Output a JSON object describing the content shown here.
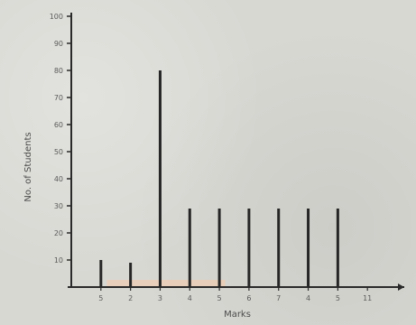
{
  "chart_data": {
    "type": "bar",
    "xlabel": "Marks",
    "ylabel": "No. of Students",
    "ylim": [
      0,
      100
    ],
    "xlim": [
      0,
      11
    ],
    "y_ticks": [
      "10",
      "20",
      "30",
      "40",
      "50",
      "60",
      "70",
      "80",
      "90",
      "100"
    ],
    "x_tick_labels": [
      "5",
      "2",
      "3",
      "4",
      "5",
      "6",
      "7",
      "4",
      "5",
      "11"
    ],
    "x_tick_positions": [
      1,
      2,
      3,
      4,
      5,
      6,
      7,
      8,
      9,
      10
    ],
    "bars": [
      {
        "x": 1,
        "value": 10
      },
      {
        "x": 2,
        "value": 9
      },
      {
        "x": 3,
        "value": 80
      },
      {
        "x": 4,
        "value": 29
      },
      {
        "x": 5,
        "value": 29
      },
      {
        "x": 6,
        "value": 29
      },
      {
        "x": 7,
        "value": 29
      },
      {
        "x": 8,
        "value": 29
      },
      {
        "x": 9,
        "value": 29
      }
    ],
    "grid": false,
    "colors": {
      "axis": "#2a2a2a",
      "bar": "#262626",
      "text": "#5a5a5a",
      "highlight": "#f5c9a8"
    }
  }
}
